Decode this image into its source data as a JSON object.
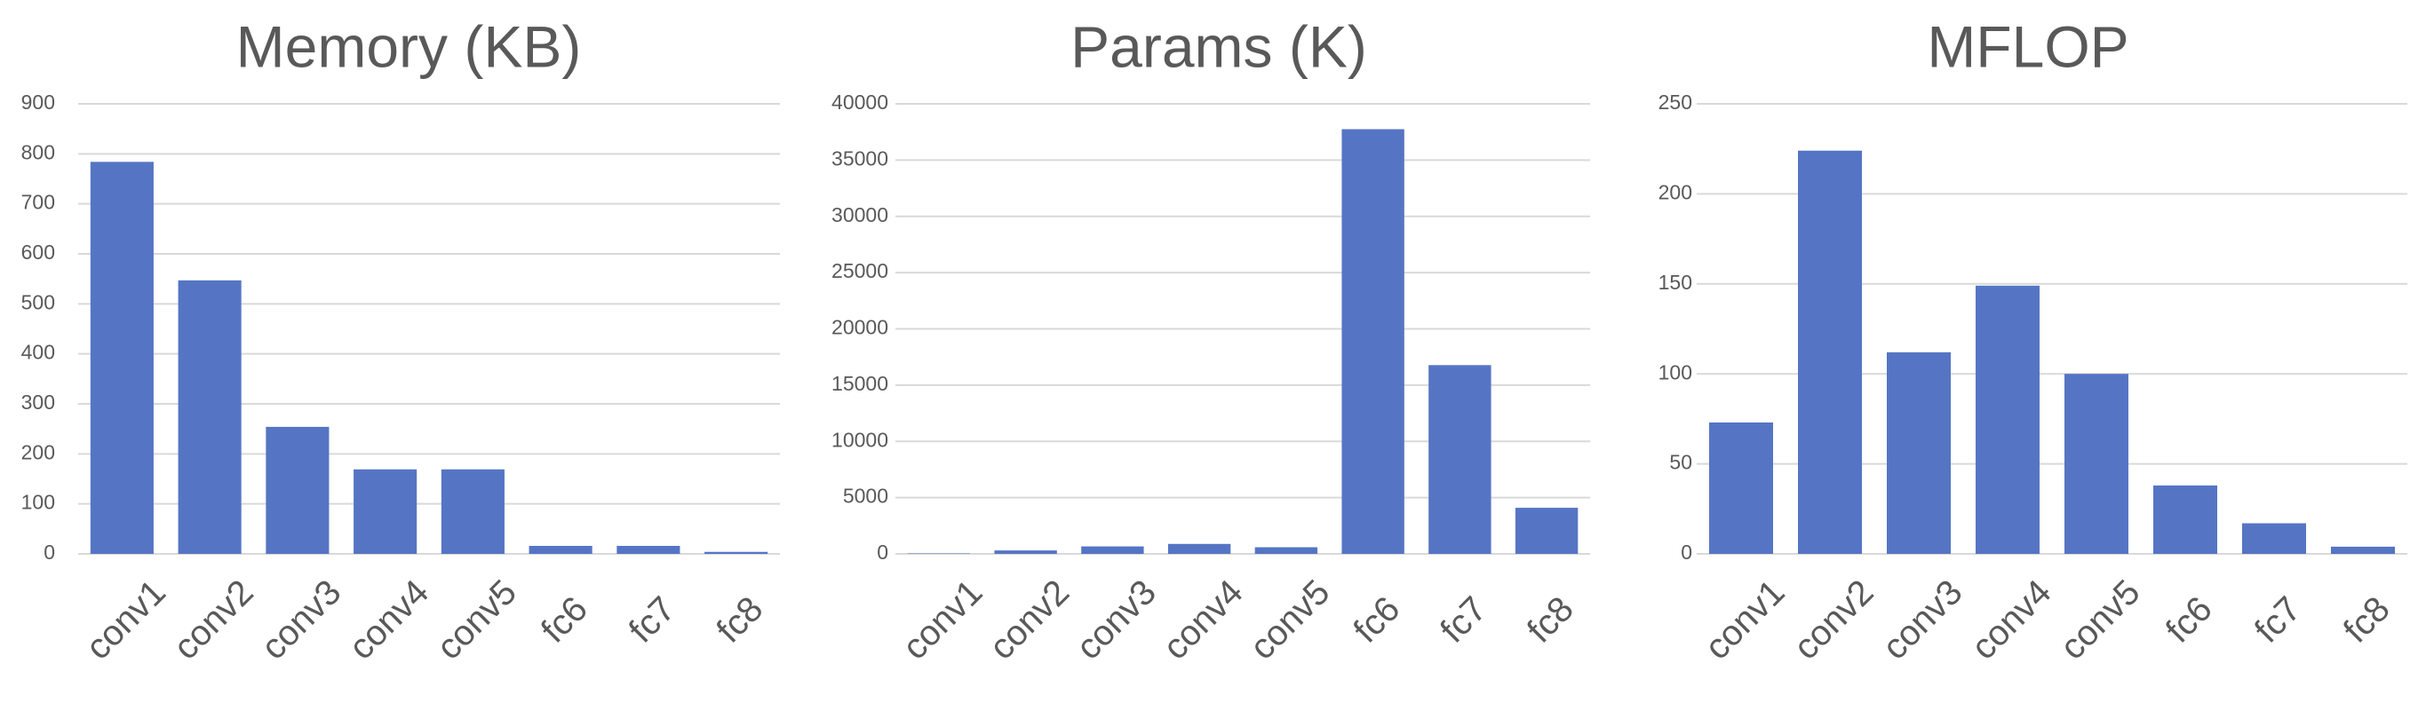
{
  "chart_data": [
    {
      "type": "bar",
      "title": "Memory (KB)",
      "categories": [
        "conv1",
        "conv2",
        "conv3",
        "conv4",
        "conv5",
        "fc6",
        "fc7",
        "fc8"
      ],
      "values": [
        784,
        547,
        254,
        169,
        169,
        16,
        16,
        4
      ],
      "yticks": [
        "0",
        "100",
        "200",
        "300",
        "400",
        "500",
        "600",
        "700",
        "800",
        "900"
      ],
      "ylim": [
        0,
        900
      ],
      "grid": true,
      "legend": "none",
      "color": "#5575c4"
    },
    {
      "type": "bar",
      "title": "Params (K)",
      "categories": [
        "conv1",
        "conv2",
        "conv3",
        "conv4",
        "conv5",
        "fc6",
        "fc7",
        "fc8"
      ],
      "values": [
        35,
        307,
        664,
        885,
        590,
        37749,
        16777,
        4097
      ],
      "yticks": [
        "0",
        "5000",
        "10000",
        "15000",
        "20000",
        "25000",
        "30000",
        "35000",
        "40000"
      ],
      "ylim": [
        0,
        40000
      ],
      "grid": true,
      "legend": "none",
      "color": "#5575c4"
    },
    {
      "type": "bar",
      "title": "MFLOP",
      "categories": [
        "conv1",
        "conv2",
        "conv3",
        "conv4",
        "conv5",
        "fc6",
        "fc7",
        "fc8"
      ],
      "values": [
        73,
        224,
        112,
        149,
        100,
        38,
        17,
        4
      ],
      "yticks": [
        "0",
        "50",
        "100",
        "150",
        "200",
        "250"
      ],
      "ylim": [
        0,
        250
      ],
      "grid": true,
      "legend": "none",
      "color": "#5575c4"
    }
  ]
}
